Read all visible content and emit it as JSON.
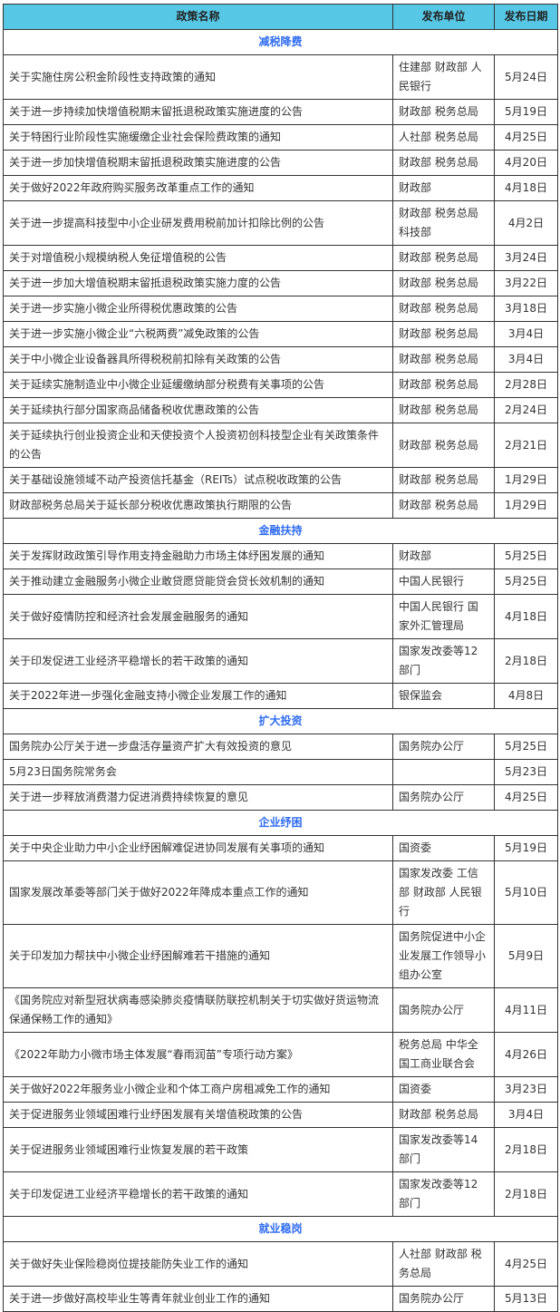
{
  "headers": [
    "政策名称",
    "发布单位",
    "发布日期"
  ],
  "sections": [
    {
      "title": "减税降费",
      "rows": [
        [
          "关于实施住房公积金阶段性支持政策的通知",
          "住建部 财政部 人民银行",
          "5月24日"
        ],
        [
          "关于进一步持续加快增值税期末留抵退税政策实施进度的公告",
          "财政部  税务总局",
          "5月19日"
        ],
        [
          "关于特困行业阶段性实施缓缴企业社会保险费政策的通知",
          "人社部 税务总局",
          "4月25日"
        ],
        [
          "关于进一步加快增值税期末留抵退税政策实施进度的公告",
          "财政部  税务总局",
          "4月20日"
        ],
        [
          "关于做好2022年政府购买服务改革重点工作的通知",
          "财政部",
          "4月18日"
        ],
        [
          "关于进一步提高科技型中小企业研发费用税前加计扣除比例的公告",
          "财政部 税务总局 科技部",
          "4月2日"
        ],
        [
          "关于对增值税小规模纳税人免征增值税的公告",
          "财政部  税务总局",
          "3月24日"
        ],
        [
          "关于进一步加大增值税期末留抵退税政策实施力度的公告",
          "财政部  税务总局",
          "3月22日"
        ],
        [
          "关于进一步实施小微企业所得税优惠政策的公告",
          "财政部  税务总局",
          "3月18日"
        ],
        [
          "关于进一步实施小微企业“六税两费”减免政策的公告",
          "财政部  税务总局",
          "3月4日"
        ],
        [
          "关于中小微企业设备器具所得税税前扣除有关政策的公告",
          "财政部  税务总局",
          "3月4日"
        ],
        [
          "关于延续实施制造业中小微企业延缓缴纳部分税费有关事项的公告",
          "财政部  税务总局",
          "2月28日"
        ],
        [
          "关于延续执行部分国家商品储备税收优惠政策的公告",
          "财政部  税务总局",
          "2月24日"
        ],
        [
          "关于延续执行创业投资企业和天使投资个人投资初创科技型企业有关政策条件的公告",
          "财政部  税务总局",
          "2月21日"
        ],
        [
          "关于基础设施领域不动产投资信托基金（REITs）试点税收政策的公告",
          "财政部  税务总局",
          "1月29日"
        ],
        [
          "财政部税务总局关于延长部分税收优惠政策执行期限的公告",
          "财政部 税务总局",
          "1月29日"
        ]
      ]
    },
    {
      "title": "金融扶持",
      "rows": [
        [
          "关于发挥财政政策引导作用支持金融助力市场主体纾困发展的通知",
          "财政部",
          "5月25日"
        ],
        [
          "关于推动建立金融服务小微企业敢贷愿贷能贷会贷长效机制的通知",
          "中国人民银行",
          "5月25日"
        ],
        [
          "关于做好疫情防控和经济社会发展金融服务的通知",
          "中国人民银行 国家外汇管理局",
          "4月18日"
        ],
        [
          "关于印发促进工业经济平稳增长的若干政策的通知",
          "国家发改委等12部门",
          "2月18日"
        ],
        [
          "关于2022年进一步强化金融支持小微企业发展工作的通知",
          "银保监会",
          "4月8日"
        ]
      ]
    },
    {
      "title": "扩大投资",
      "rows": [
        [
          "国务院办公厅关于进一步盘活存量资产扩大有效投资的意见",
          "国务院办公厅",
          "5月25日"
        ],
        [
          "5月23日国务院常务会",
          "",
          "5月23日"
        ],
        [
          "关于进一步释放消费潜力促进消费持续恢复的意见",
          "国务院办公厅",
          "4月25日"
        ]
      ]
    },
    {
      "title": "企业纾困",
      "rows": [
        [
          "关于中央企业助力中小企业纾困解难促进协同发展有关事项的通知",
          "国资委",
          "5月19日"
        ],
        [
          "国家发展改革委等部门关于做好2022年降成本重点工作的通知",
          "国家发改委 工信部 财政部 人民银行",
          "5月10日"
        ],
        [
          "关于印发加力帮扶中小微企业纾困解难若干措施的通知",
          "国务院促进中小企业发展工作领导小组办公室",
          "5月9日"
        ],
        [
          "《国务院应对新型冠状病毒感染肺炎疫情联防联控机制关于切实做好货运物流保通保畅工作的通知》",
          "国务院办公厅",
          "4月11日"
        ],
        [
          "《2022年助力小微市场主体发展“春雨润苗”专项行动方案》",
          "税务总局 中华全国工商业联合会",
          "4月26日"
        ],
        [
          "关于做好2022年服务业小微企业和个体工商户房租减免工作的通知",
          "国资委",
          "3月23日"
        ],
        [
          "关于促进服务业领域困难行业纾困发展有关增值税政策的公告",
          "财政部  税务总局",
          "3月4日"
        ],
        [
          "关于促进服务业领域困难行业恢复发展的若干政策",
          "国家发改委等14部门",
          "2月18日"
        ],
        [
          "关于印发促进工业经济平稳增长的若干政策的通知",
          "国家发改委等12部门",
          "2月18日"
        ]
      ]
    },
    {
      "title": "就业稳岗",
      "rows": [
        [
          "关于做好失业保险稳岗位提技能防失业工作的通知",
          "人社部 财政部 税务总局",
          "4月25日"
        ],
        [
          "关于进一步做好高校毕业生等青年就业创业工作的通知",
          "国务院办公厅",
          "5月13日"
        ]
      ]
    }
  ],
  "colors": {
    "header_bg": "#56c8e6",
    "section_text": "#2f6cf0"
  }
}
